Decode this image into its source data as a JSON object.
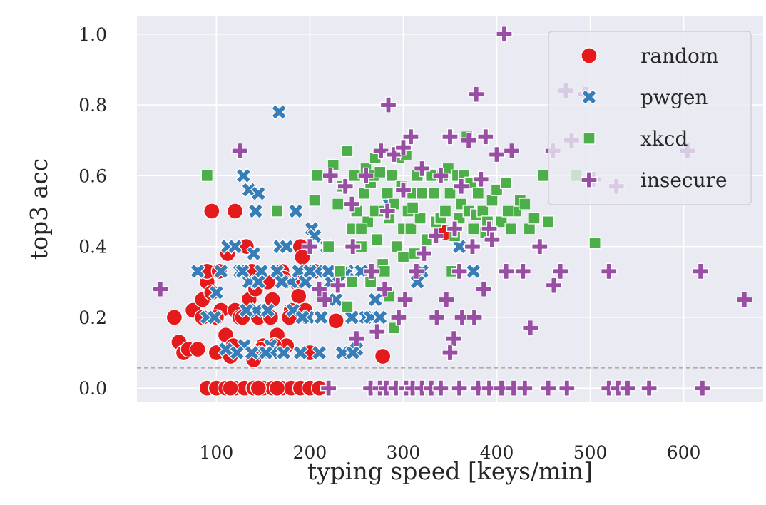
{
  "chart_data": {
    "type": "scatter",
    "title": "",
    "xlabel": "typing speed [keys/min]",
    "ylabel": "top3 acc",
    "xlim": [
      15,
      685
    ],
    "ylim": [
      -0.04,
      1.05
    ],
    "xticks": [
      "100",
      "200",
      "300",
      "400",
      "500",
      "600"
    ],
    "yticks": [
      "0.0",
      "0.2",
      "0.4",
      "0.6",
      "0.8",
      "1.0"
    ],
    "grid": true,
    "background": "#eaeaf2",
    "reference_line": {
      "y": 0.057,
      "style": "dashed",
      "color": "#999999"
    },
    "legend": {
      "placement": "top-right"
    },
    "series": [
      {
        "name": "random",
        "marker": "circle",
        "color": "#e41a1c",
        "points": [
          [
            95,
            0.5
          ],
          [
            120,
            0.5
          ],
          [
            55,
            0.2
          ],
          [
            60,
            0.13
          ],
          [
            65,
            0.1
          ],
          [
            70,
            0.11
          ],
          [
            75,
            0.22
          ],
          [
            80,
            0.11
          ],
          [
            85,
            0.25
          ],
          [
            90,
            0.3
          ],
          [
            95,
            0.27
          ],
          [
            100,
            0.1
          ],
          [
            105,
            0.22
          ],
          [
            110,
            0.15
          ],
          [
            115,
            0.09
          ],
          [
            120,
            0.22
          ],
          [
            125,
            0.2
          ],
          [
            130,
            0.4
          ],
          [
            135,
            0.25
          ],
          [
            140,
            0.08
          ],
          [
            145,
            0.2
          ],
          [
            150,
            0.12
          ],
          [
            155,
            0.3
          ],
          [
            160,
            0.25
          ],
          [
            165,
            0.15
          ],
          [
            170,
            0.33
          ],
          [
            175,
            0.12
          ],
          [
            180,
            0.22
          ],
          [
            185,
            0.3
          ],
          [
            190,
            0.4
          ],
          [
            195,
            0.22
          ],
          [
            200,
            0.1
          ],
          [
            205,
            0.33
          ],
          [
            90,
            0.33
          ],
          [
            112,
            0.38
          ],
          [
            128,
            0.2
          ],
          [
            138,
            0.33
          ],
          [
            148,
            0.11
          ],
          [
            158,
            0.2
          ],
          [
            178,
            0.2
          ],
          [
            192,
            0.37
          ],
          [
            228,
            0.19
          ],
          [
            278,
            0.09
          ],
          [
            345,
            0.44
          ],
          [
            100,
            0.2
          ],
          [
            85,
            0.2
          ],
          [
            103,
            0.33
          ],
          [
            118,
            0.12
          ],
          [
            132,
            0.4
          ],
          [
            142,
            0.28
          ],
          [
            162,
            0.12
          ],
          [
            172,
            0.31
          ],
          [
            188,
            0.26
          ],
          [
            90,
            0
          ],
          [
            100,
            0
          ],
          [
            110,
            0
          ],
          [
            120,
            0
          ],
          [
            130,
            0
          ],
          [
            140,
            0
          ],
          [
            150,
            0
          ],
          [
            160,
            0
          ],
          [
            170,
            0
          ],
          [
            180,
            0
          ],
          [
            190,
            0
          ],
          [
            200,
            0
          ],
          [
            210,
            0
          ],
          [
            145,
            0
          ],
          [
            165,
            0
          ],
          [
            115,
            0
          ]
        ]
      },
      {
        "name": "pwgen",
        "marker": "x",
        "color": "#377eb8",
        "points": [
          [
            167,
            0.78
          ],
          [
            129,
            0.6
          ],
          [
            135,
            0.56
          ],
          [
            145,
            0.55
          ],
          [
            142,
            0.5
          ],
          [
            80,
            0.33
          ],
          [
            90,
            0.2
          ],
          [
            98,
            0.2
          ],
          [
            100,
            0.27
          ],
          [
            105,
            0.33
          ],
          [
            112,
            0.4
          ],
          [
            120,
            0.4
          ],
          [
            125,
            0.33
          ],
          [
            130,
            0.12
          ],
          [
            135,
            0.3
          ],
          [
            140,
            0.38
          ],
          [
            143,
            0.22
          ],
          [
            148,
            0.33
          ],
          [
            150,
            0.1
          ],
          [
            158,
            0.12
          ],
          [
            160,
            0.1
          ],
          [
            165,
            0.33
          ],
          [
            168,
            0.4
          ],
          [
            172,
            0.1
          ],
          [
            175,
            0.4
          ],
          [
            180,
            0.3
          ],
          [
            185,
            0.5
          ],
          [
            188,
            0.33
          ],
          [
            190,
            0.1
          ],
          [
            195,
            0.3
          ],
          [
            198,
            0.2
          ],
          [
            202,
            0.45
          ],
          [
            205,
            0.43
          ],
          [
            208,
            0.33
          ],
          [
            212,
            0.2
          ],
          [
            218,
            0.4
          ],
          [
            222,
            0.3
          ],
          [
            230,
            0.3
          ],
          [
            235,
            0.1
          ],
          [
            240,
            0.33
          ],
          [
            245,
            0.2
          ],
          [
            250,
            0.11
          ],
          [
            255,
            0.33
          ],
          [
            260,
            0.2
          ],
          [
            265,
            0.2
          ],
          [
            270,
            0.25
          ],
          [
            275,
            0.2
          ],
          [
            285,
            0.52
          ],
          [
            315,
            0.3
          ],
          [
            320,
            0.33
          ],
          [
            335,
            0.6
          ],
          [
            360,
            0.4
          ],
          [
            375,
            0.33
          ],
          [
            138,
            0.1
          ],
          [
            153,
            0.1
          ],
          [
            182,
            0.22
          ],
          [
            228,
            0.25
          ],
          [
            155,
            0.22
          ],
          [
            132,
            0.22
          ],
          [
            200,
            0.33
          ],
          [
            122,
            0.1
          ],
          [
            246,
            0.1
          ],
          [
            220,
            0.33
          ],
          [
            170,
            0.3
          ],
          [
            110,
            0.11
          ],
          [
            128,
            0.33
          ],
          [
            145,
            0.3
          ],
          [
            192,
            0.2
          ],
          [
            238,
            0.32
          ],
          [
            210,
            0.1
          ]
        ]
      },
      {
        "name": "xkcd",
        "marker": "square",
        "color": "#4daf4a",
        "points": [
          [
            90,
            0.6
          ],
          [
            165,
            0.5
          ],
          [
            205,
            0.53
          ],
          [
            208,
            0.6
          ],
          [
            220,
            0.4
          ],
          [
            225,
            0.63
          ],
          [
            230,
            0.52
          ],
          [
            235,
            0.57
          ],
          [
            240,
            0.67
          ],
          [
            245,
            0.45
          ],
          [
            248,
            0.6
          ],
          [
            250,
            0.5
          ],
          [
            255,
            0.4
          ],
          [
            258,
            0.55
          ],
          [
            260,
            0.62
          ],
          [
            262,
            0.47
          ],
          [
            265,
            0.58
          ],
          [
            268,
            0.6
          ],
          [
            270,
            0.5
          ],
          [
            272,
            0.42
          ],
          [
            275,
            0.61
          ],
          [
            278,
            0.35
          ],
          [
            280,
            0.5
          ],
          [
            283,
            0.55
          ],
          [
            285,
            0.48
          ],
          [
            288,
            0.6
          ],
          [
            290,
            0.52
          ],
          [
            293,
            0.4
          ],
          [
            295,
            0.65
          ],
          [
            298,
            0.57
          ],
          [
            300,
            0.45
          ],
          [
            303,
            0.66
          ],
          [
            305,
            0.5
          ],
          [
            308,
            0.45
          ],
          [
            310,
            0.55
          ],
          [
            312,
            0.38
          ],
          [
            315,
            0.6
          ],
          [
            318,
            0.48
          ],
          [
            320,
            0.55
          ],
          [
            325,
            0.42
          ],
          [
            330,
            0.6
          ],
          [
            335,
            0.47
          ],
          [
            340,
            0.48
          ],
          [
            342,
            0.6
          ],
          [
            345,
            0.5
          ],
          [
            348,
            0.62
          ],
          [
            350,
            0.55
          ],
          [
            352,
            0.33
          ],
          [
            355,
            0.43
          ],
          [
            358,
            0.6
          ],
          [
            360,
            0.48
          ],
          [
            362,
            0.52
          ],
          [
            365,
            0.6
          ],
          [
            368,
            0.71
          ],
          [
            370,
            0.5
          ],
          [
            372,
            0.58
          ],
          [
            375,
            0.45
          ],
          [
            378,
            0.49
          ],
          [
            380,
            0.55
          ],
          [
            385,
            0.5
          ],
          [
            390,
            0.47
          ],
          [
            395,
            0.53
          ],
          [
            400,
            0.56
          ],
          [
            405,
            0.47
          ],
          [
            410,
            0.58
          ],
          [
            415,
            0.45
          ],
          [
            420,
            0.5
          ],
          [
            425,
            0.53
          ],
          [
            430,
            0.52
          ],
          [
            435,
            0.45
          ],
          [
            440,
            0.48
          ],
          [
            450,
            0.6
          ],
          [
            455,
            0.47
          ],
          [
            485,
            0.6
          ],
          [
            505,
            0.41
          ],
          [
            265,
            0.3
          ],
          [
            285,
            0.26
          ],
          [
            290,
            0.17
          ],
          [
            280,
            0.33
          ],
          [
            300,
            0.37
          ],
          [
            255,
            0.45
          ],
          [
            270,
            0.65
          ],
          [
            232,
            0.33
          ],
          [
            240,
            0.23
          ],
          [
            310,
            0.51
          ],
          [
            388,
            0.44
          ],
          [
            245,
            0.3
          ],
          [
            333,
            0.55
          ],
          [
            412,
            0.5
          ]
        ]
      },
      {
        "name": "insecure",
        "marker": "plus",
        "color": "#984ea3",
        "points": [
          [
            408,
            1.0
          ],
          [
            378,
            0.83
          ],
          [
            284,
            0.8
          ],
          [
            474,
            0.84
          ],
          [
            495,
            0.83
          ],
          [
            308,
            0.71
          ],
          [
            350,
            0.71
          ],
          [
            370,
            0.7
          ],
          [
            388,
            0.71
          ],
          [
            125,
            0.67
          ],
          [
            276,
            0.67
          ],
          [
            290,
            0.66
          ],
          [
            300,
            0.68
          ],
          [
            320,
            0.62
          ],
          [
            400,
            0.66
          ],
          [
            416,
            0.67
          ],
          [
            460,
            0.67
          ],
          [
            480,
            0.7
          ],
          [
            604,
            0.67
          ],
          [
            222,
            0.6
          ],
          [
            238,
            0.57
          ],
          [
            260,
            0.6
          ],
          [
            300,
            0.56
          ],
          [
            340,
            0.6
          ],
          [
            362,
            0.57
          ],
          [
            383,
            0.59
          ],
          [
            503,
            0.59
          ],
          [
            528,
            0.57
          ],
          [
            245,
            0.52
          ],
          [
            283,
            0.5
          ],
          [
            335,
            0.43
          ],
          [
            355,
            0.45
          ],
          [
            392,
            0.45
          ],
          [
            40,
            0.28
          ],
          [
            246,
            0.4
          ],
          [
            266,
            0.33
          ],
          [
            280,
            0.28
          ],
          [
            302,
            0.25
          ],
          [
            314,
            0.33
          ],
          [
            322,
            0.38
          ],
          [
            346,
            0.25
          ],
          [
            360,
            0.33
          ],
          [
            374,
            0.4
          ],
          [
            395,
            0.42
          ],
          [
            410,
            0.33
          ],
          [
            428,
            0.33
          ],
          [
            446,
            0.4
          ],
          [
            461,
            0.29
          ],
          [
            468,
            0.33
          ],
          [
            520,
            0.33
          ],
          [
            618,
            0.33
          ],
          [
            665,
            0.25
          ],
          [
            336,
            0.2
          ],
          [
            354,
            0.14
          ],
          [
            363,
            0.2
          ],
          [
            376,
            0.2
          ],
          [
            386,
            0.28
          ],
          [
            436,
            0.17
          ],
          [
            350,
            0.1
          ],
          [
            250,
            0.14
          ],
          [
            210,
            0.28
          ],
          [
            230,
            0.29
          ],
          [
            200,
            0.4
          ],
          [
            216,
            0.25
          ],
          [
            272,
            0.16
          ],
          [
            295,
            0.2
          ],
          [
            220,
            0
          ],
          [
            265,
            0
          ],
          [
            275,
            0
          ],
          [
            282,
            0
          ],
          [
            292,
            0
          ],
          [
            303,
            0
          ],
          [
            310,
            0
          ],
          [
            320,
            0
          ],
          [
            330,
            0
          ],
          [
            340,
            0
          ],
          [
            360,
            0
          ],
          [
            380,
            0
          ],
          [
            392,
            0
          ],
          [
            405,
            0
          ],
          [
            418,
            0
          ],
          [
            430,
            0
          ],
          [
            455,
            0
          ],
          [
            475,
            0
          ],
          [
            520,
            0
          ],
          [
            530,
            0
          ],
          [
            540,
            0
          ],
          [
            563,
            0
          ],
          [
            620,
            0
          ]
        ]
      }
    ]
  }
}
